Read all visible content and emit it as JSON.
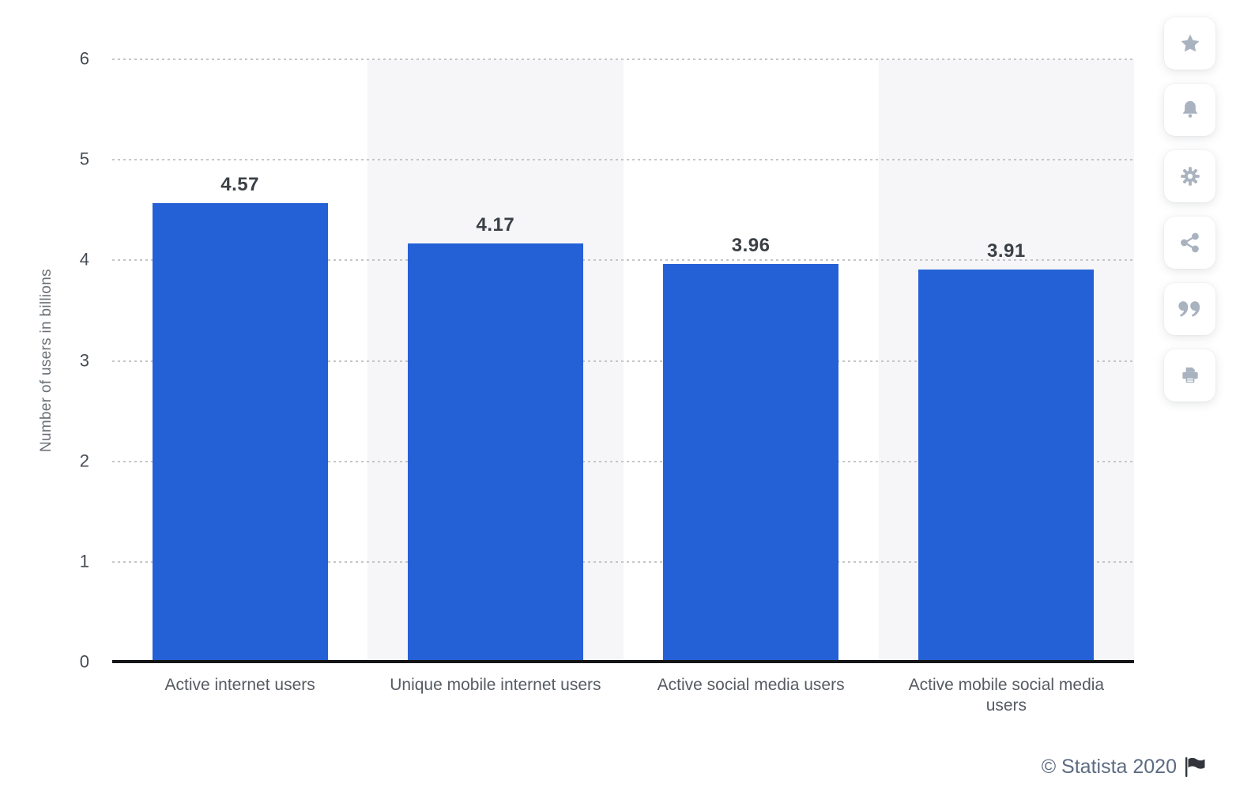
{
  "chart_data": {
    "type": "bar",
    "title": "",
    "categories": [
      "Active internet users",
      "Unique mobile internet users",
      "Active social media users",
      "Active mobile social media users"
    ],
    "values": [
      4.57,
      4.17,
      3.96,
      3.91
    ],
    "value_labels": [
      "4.57",
      "4.17",
      "3.96",
      "3.91"
    ],
    "xlabel": "",
    "ylabel": "Number of users in billions",
    "yticks": [
      0,
      1,
      2,
      3,
      4,
      5,
      6
    ],
    "ylim": [
      0,
      6
    ],
    "grid": "dotted horizontal gridlines",
    "legend": "none",
    "bar_color": "#2561d6",
    "band_color": "#f6f6f8",
    "alternating_column_bands": [
      1,
      3
    ]
  },
  "toolbar": {
    "buttons": [
      {
        "name": "favorite",
        "icon": "star-icon"
      },
      {
        "name": "notifications",
        "icon": "bell-icon"
      },
      {
        "name": "settings",
        "icon": "gear-icon"
      },
      {
        "name": "share",
        "icon": "share-icon"
      },
      {
        "name": "cite",
        "icon": "quote-icon"
      },
      {
        "name": "print",
        "icon": "print-icon"
      }
    ],
    "icon_color": "#a9b2bf"
  },
  "attribution": {
    "text": "© Statista 2020",
    "flag_icon": "flag-icon",
    "text_color": "#5c6b80"
  }
}
